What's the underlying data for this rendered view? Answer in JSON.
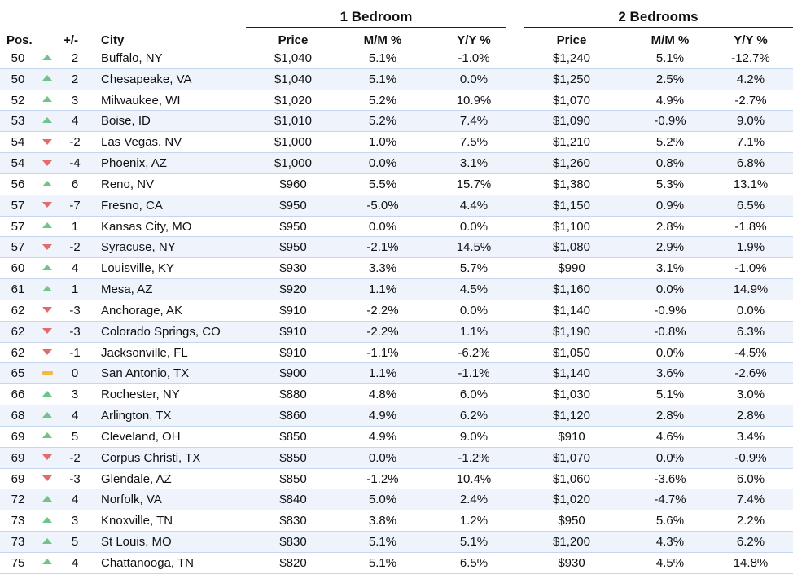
{
  "groups": {
    "one_bedroom": "1 Bedroom",
    "two_bedrooms": "2 Bedrooms"
  },
  "headers": {
    "pos": "Pos.",
    "change": "+/-",
    "city": "City",
    "price": "Price",
    "mm": "M/M %",
    "yy": "Y/Y %"
  },
  "colors": {
    "up": "#6fc48a",
    "down": "#e36b6b",
    "flat": "#f5b942",
    "row_alt": "#eef3fc",
    "row_border": "#c5d6ee"
  },
  "rows": [
    {
      "pos": "50",
      "trend": "up",
      "change": "2",
      "city": "Buffalo, NY",
      "price1": "$1,040",
      "mm1": "5.1%",
      "yy1": "-1.0%",
      "price2": "$1,240",
      "mm2": "5.1%",
      "yy2": "-12.7%"
    },
    {
      "pos": "50",
      "trend": "up",
      "change": "2",
      "city": "Chesapeake, VA",
      "price1": "$1,040",
      "mm1": "5.1%",
      "yy1": "0.0%",
      "price2": "$1,250",
      "mm2": "2.5%",
      "yy2": "4.2%"
    },
    {
      "pos": "52",
      "trend": "up",
      "change": "3",
      "city": "Milwaukee, WI",
      "price1": "$1,020",
      "mm1": "5.2%",
      "yy1": "10.9%",
      "price2": "$1,070",
      "mm2": "4.9%",
      "yy2": "-2.7%"
    },
    {
      "pos": "53",
      "trend": "up",
      "change": "4",
      "city": "Boise, ID",
      "price1": "$1,010",
      "mm1": "5.2%",
      "yy1": "7.4%",
      "price2": "$1,090",
      "mm2": "-0.9%",
      "yy2": "9.0%"
    },
    {
      "pos": "54",
      "trend": "down",
      "change": "-2",
      "city": "Las Vegas, NV",
      "price1": "$1,000",
      "mm1": "1.0%",
      "yy1": "7.5%",
      "price2": "$1,210",
      "mm2": "5.2%",
      "yy2": "7.1%"
    },
    {
      "pos": "54",
      "trend": "down",
      "change": "-4",
      "city": "Phoenix, AZ",
      "price1": "$1,000",
      "mm1": "0.0%",
      "yy1": "3.1%",
      "price2": "$1,260",
      "mm2": "0.8%",
      "yy2": "6.8%"
    },
    {
      "pos": "56",
      "trend": "up",
      "change": "6",
      "city": "Reno, NV",
      "price1": "$960",
      "mm1": "5.5%",
      "yy1": "15.7%",
      "price2": "$1,380",
      "mm2": "5.3%",
      "yy2": "13.1%"
    },
    {
      "pos": "57",
      "trend": "down",
      "change": "-7",
      "city": "Fresno, CA",
      "price1": "$950",
      "mm1": "-5.0%",
      "yy1": "4.4%",
      "price2": "$1,150",
      "mm2": "0.9%",
      "yy2": "6.5%"
    },
    {
      "pos": "57",
      "trend": "up",
      "change": "1",
      "city": "Kansas City, MO",
      "price1": "$950",
      "mm1": "0.0%",
      "yy1": "0.0%",
      "price2": "$1,100",
      "mm2": "2.8%",
      "yy2": "-1.8%"
    },
    {
      "pos": "57",
      "trend": "down",
      "change": "-2",
      "city": "Syracuse, NY",
      "price1": "$950",
      "mm1": "-2.1%",
      "yy1": "14.5%",
      "price2": "$1,080",
      "mm2": "2.9%",
      "yy2": "1.9%"
    },
    {
      "pos": "60",
      "trend": "up",
      "change": "4",
      "city": "Louisville, KY",
      "price1": "$930",
      "mm1": "3.3%",
      "yy1": "5.7%",
      "price2": "$990",
      "mm2": "3.1%",
      "yy2": "-1.0%"
    },
    {
      "pos": "61",
      "trend": "up",
      "change": "1",
      "city": "Mesa, AZ",
      "price1": "$920",
      "mm1": "1.1%",
      "yy1": "4.5%",
      "price2": "$1,160",
      "mm2": "0.0%",
      "yy2": "14.9%"
    },
    {
      "pos": "62",
      "trend": "down",
      "change": "-3",
      "city": "Anchorage, AK",
      "price1": "$910",
      "mm1": "-2.2%",
      "yy1": "0.0%",
      "price2": "$1,140",
      "mm2": "-0.9%",
      "yy2": "0.0%"
    },
    {
      "pos": "62",
      "trend": "down",
      "change": "-3",
      "city": "Colorado Springs, CO",
      "price1": "$910",
      "mm1": "-2.2%",
      "yy1": "1.1%",
      "price2": "$1,190",
      "mm2": "-0.8%",
      "yy2": "6.3%"
    },
    {
      "pos": "62",
      "trend": "down",
      "change": "-1",
      "city": "Jacksonville, FL",
      "price1": "$910",
      "mm1": "-1.1%",
      "yy1": "-6.2%",
      "price2": "$1,050",
      "mm2": "0.0%",
      "yy2": "-4.5%"
    },
    {
      "pos": "65",
      "trend": "flat",
      "change": "0",
      "city": "San Antonio, TX",
      "price1": "$900",
      "mm1": "1.1%",
      "yy1": "-1.1%",
      "price2": "$1,140",
      "mm2": "3.6%",
      "yy2": "-2.6%"
    },
    {
      "pos": "66",
      "trend": "up",
      "change": "3",
      "city": "Rochester, NY",
      "price1": "$880",
      "mm1": "4.8%",
      "yy1": "6.0%",
      "price2": "$1,030",
      "mm2": "5.1%",
      "yy2": "3.0%"
    },
    {
      "pos": "68",
      "trend": "up",
      "change": "4",
      "city": "Arlington, TX",
      "price1": "$860",
      "mm1": "4.9%",
      "yy1": "6.2%",
      "price2": "$1,120",
      "mm2": "2.8%",
      "yy2": "2.8%"
    },
    {
      "pos": "69",
      "trend": "up",
      "change": "5",
      "city": "Cleveland, OH",
      "price1": "$850",
      "mm1": "4.9%",
      "yy1": "9.0%",
      "price2": "$910",
      "mm2": "4.6%",
      "yy2": "3.4%"
    },
    {
      "pos": "69",
      "trend": "down",
      "change": "-2",
      "city": "Corpus Christi, TX",
      "price1": "$850",
      "mm1": "0.0%",
      "yy1": "-1.2%",
      "price2": "$1,070",
      "mm2": "0.0%",
      "yy2": "-0.9%"
    },
    {
      "pos": "69",
      "trend": "down",
      "change": "-3",
      "city": "Glendale, AZ",
      "price1": "$850",
      "mm1": "-1.2%",
      "yy1": "10.4%",
      "price2": "$1,060",
      "mm2": "-3.6%",
      "yy2": "6.0%"
    },
    {
      "pos": "72",
      "trend": "up",
      "change": "4",
      "city": "Norfolk, VA",
      "price1": "$840",
      "mm1": "5.0%",
      "yy1": "2.4%",
      "price2": "$1,020",
      "mm2": "-4.7%",
      "yy2": "7.4%"
    },
    {
      "pos": "73",
      "trend": "up",
      "change": "3",
      "city": "Knoxville, TN",
      "price1": "$830",
      "mm1": "3.8%",
      "yy1": "1.2%",
      "price2": "$950",
      "mm2": "5.6%",
      "yy2": "2.2%"
    },
    {
      "pos": "73",
      "trend": "up",
      "change": "5",
      "city": "St Louis, MO",
      "price1": "$830",
      "mm1": "5.1%",
      "yy1": "5.1%",
      "price2": "$1,200",
      "mm2": "4.3%",
      "yy2": "6.2%"
    },
    {
      "pos": "75",
      "trend": "up",
      "change": "4",
      "city": "Chattanooga, TN",
      "price1": "$820",
      "mm1": "5.1%",
      "yy1": "6.5%",
      "price2": "$930",
      "mm2": "4.5%",
      "yy2": "14.8%"
    }
  ]
}
